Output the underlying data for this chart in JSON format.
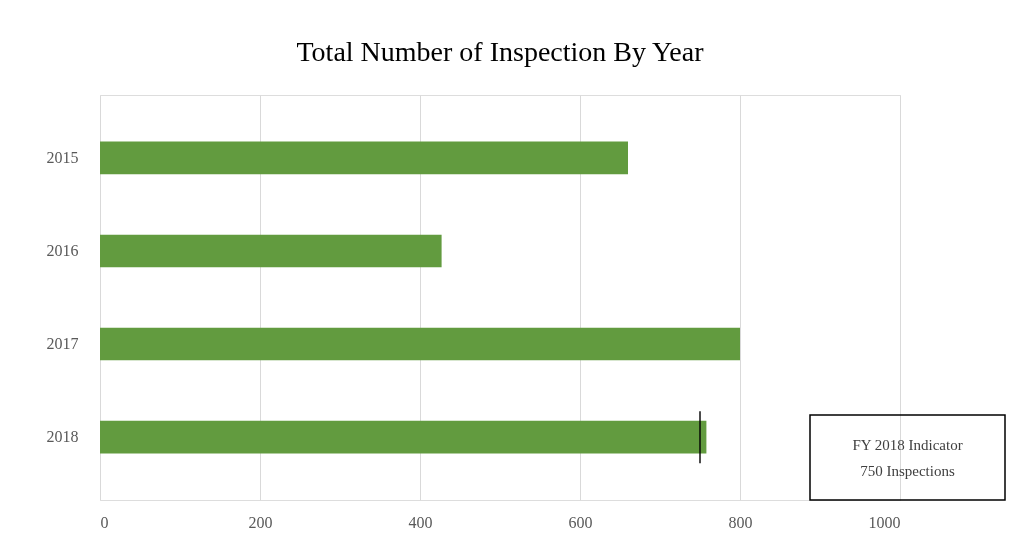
{
  "chart_data": {
    "type": "bar",
    "orientation": "horizontal",
    "title": "Total Number of Inspection By Year",
    "categories": [
      "2015",
      "2016",
      "2017",
      "2018"
    ],
    "values": [
      660,
      427,
      800,
      758
    ],
    "color": "#629b3f",
    "xlim": [
      0,
      1000
    ],
    "xticks": [
      0,
      200,
      400,
      600,
      800,
      1000
    ],
    "grid": "x",
    "ref_lines": [
      {
        "axis": "x",
        "value": 750,
        "color": "#000000"
      }
    ],
    "annotations": [
      "FY 2018 Indicator\n750 Inspections"
    ]
  }
}
